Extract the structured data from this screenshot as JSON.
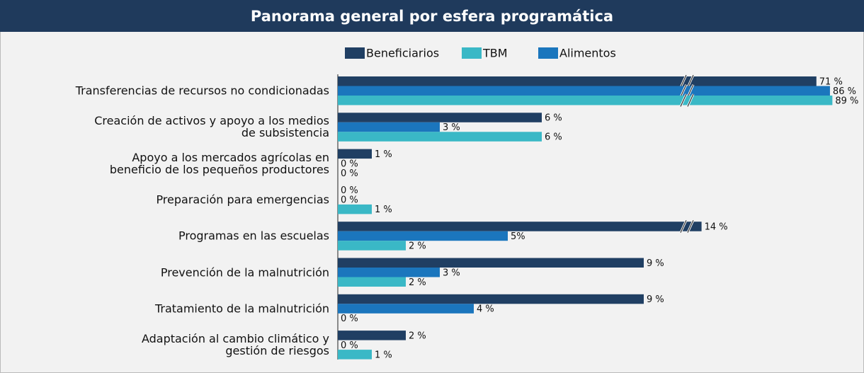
{
  "chart_data": {
    "type": "bar",
    "orientation": "horizontal",
    "title": "Panorama general por esfera programática",
    "categories": [
      "Transferencias de recursos no condicionadas",
      "Creación de activos y apoyo a los medios\nde subsistencia",
      "Apoyo a los mercados agrícolas en\nbeneficio de los pequeños productores",
      "Preparación para emergencias",
      "Programas en las escuelas",
      "Prevención de la malnutrición",
      "Tratamiento de la malnutrición",
      "Adaptación al cambio climático y\ngestión de riesgos"
    ],
    "series": [
      {
        "name": "Beneficiarios",
        "color": "#203f63",
        "values": [
          71,
          6,
          1,
          0,
          14,
          9,
          9,
          2
        ],
        "value_labels": [
          "71 %",
          "6 %",
          "1 %",
          "0 %",
          "14 %",
          "9 %",
          "9 %",
          "2 %"
        ]
      },
      {
        "name": "TBM",
        "color": "#3ab8c6",
        "values": [
          89,
          6,
          0,
          1,
          2,
          2,
          0,
          1
        ],
        "value_labels": [
          "89 %",
          "6 %",
          "0 %",
          "1 %",
          "2 %",
          "2 %",
          "0 %",
          "1 %"
        ]
      },
      {
        "name": "Alimentos",
        "color": "#1b76bd",
        "values": [
          86,
          3,
          0,
          0,
          5,
          3,
          4,
          0
        ],
        "value_labels": [
          "86 %",
          "3 %",
          "0 %",
          "0 %",
          "5%",
          "3 %",
          "4 %",
          "0 %"
        ]
      }
    ],
    "axis_break": {
      "at": 10
    },
    "legend": "top"
  }
}
